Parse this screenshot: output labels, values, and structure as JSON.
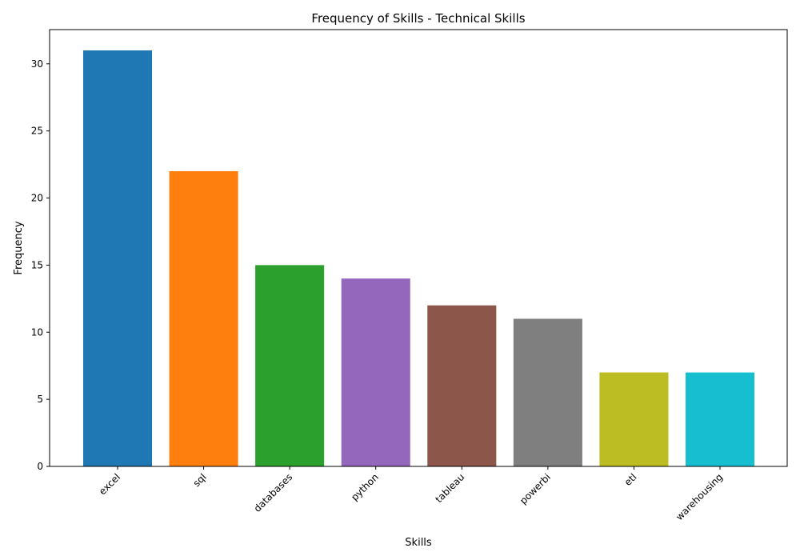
{
  "chart_data": {
    "type": "bar",
    "title": "Frequency of Skills - Technical Skills",
    "xlabel": "Skills",
    "ylabel": "Frequency",
    "categories": [
      "excel",
      "sql",
      "databases",
      "python",
      "tableau",
      "powerbi",
      "etl",
      "warehousing"
    ],
    "values": [
      31,
      22,
      15,
      14,
      12,
      11,
      7,
      7
    ],
    "colors": [
      "#1f77b4",
      "#ff7f0e",
      "#2ca02c",
      "#9467bd",
      "#8c564b",
      "#7f7f7f",
      "#bcbd22",
      "#17becf"
    ],
    "yticks": [
      0,
      5,
      10,
      15,
      20,
      25,
      30
    ],
    "ylim": [
      0,
      32.55
    ],
    "grid": false,
    "legend": false
  }
}
